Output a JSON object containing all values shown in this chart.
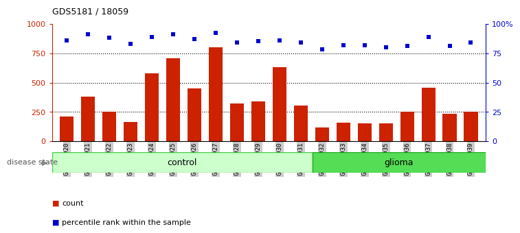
{
  "title": "GDS5181 / 18059",
  "samples": [
    "GSM769920",
    "GSM769921",
    "GSM769922",
    "GSM769923",
    "GSM769924",
    "GSM769925",
    "GSM769926",
    "GSM769927",
    "GSM769928",
    "GSM769929",
    "GSM769930",
    "GSM769931",
    "GSM769932",
    "GSM769933",
    "GSM769934",
    "GSM769935",
    "GSM769936",
    "GSM769937",
    "GSM769938",
    "GSM769939"
  ],
  "counts": [
    210,
    380,
    255,
    165,
    580,
    710,
    450,
    800,
    320,
    340,
    630,
    305,
    120,
    160,
    155,
    155,
    255,
    455,
    235,
    255
  ],
  "percentile_ranks": [
    86,
    91,
    88,
    83,
    89,
    91,
    87,
    92,
    84,
    85,
    86,
    84,
    78,
    82,
    82,
    80,
    81,
    89,
    81,
    84
  ],
  "control_count": 12,
  "glioma_count": 8,
  "bar_color": "#cc2200",
  "dot_color": "#0000cc",
  "control_fill": "#ccffcc",
  "control_edge": "#44cc44",
  "glioma_fill": "#55dd55",
  "glioma_edge": "#22aa22",
  "label_bg_color": "#cccccc",
  "ylim_left": [
    0,
    1000
  ],
  "ylim_right": [
    0,
    100
  ],
  "yticks_left": [
    0,
    250,
    500,
    750,
    1000
  ],
  "yticks_right": [
    0,
    25,
    50,
    75,
    100
  ],
  "grid_values": [
    250,
    500,
    750
  ],
  "legend_count_label": "count",
  "legend_pct_label": "percentile rank within the sample",
  "disease_state_label": "disease state",
  "control_label": "control",
  "glioma_label": "glioma"
}
